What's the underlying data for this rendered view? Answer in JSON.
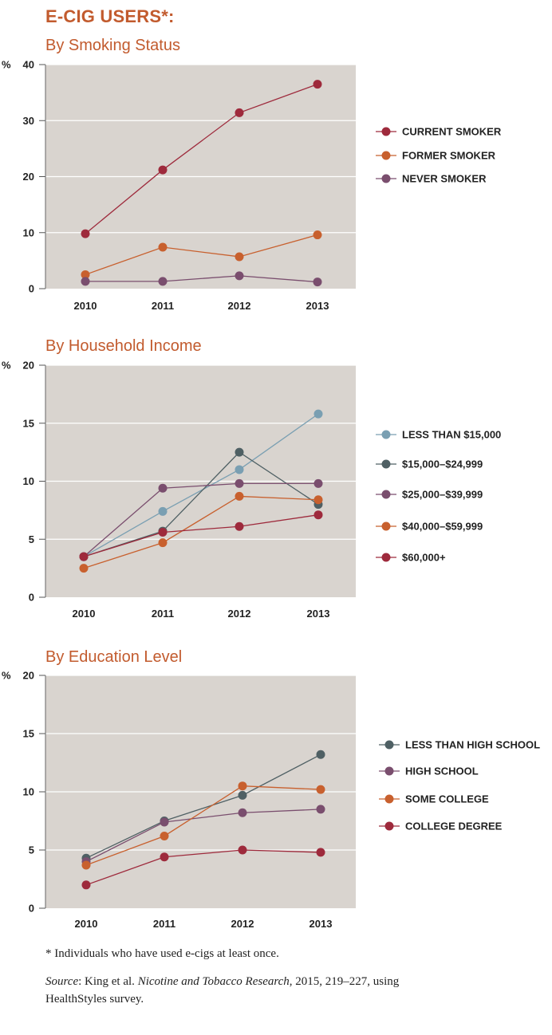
{
  "page": {
    "title": "E-CIG USERS*:",
    "footnote": "* Individuals who have used e-cigs at least once.",
    "source_label": "Source",
    "source_sep": ": King et al. ",
    "source_journal": "Nicotine and Tobacco Research",
    "source_rest": ", 2015, 219–227, using HealthStyles survey."
  },
  "chart_data": [
    {
      "type": "line",
      "title": "By Smoking Status",
      "ylabel": "%",
      "x": [
        "2010",
        "2011",
        "2012",
        "2013"
      ],
      "ylim": [
        0,
        40
      ],
      "yticks": [
        0,
        10,
        20,
        30,
        40
      ],
      "grid": true,
      "legend_position": "right",
      "series": [
        {
          "name": "CURRENT SMOKER",
          "color": "#9e2a3c",
          "values": [
            9.8,
            21.2,
            31.4,
            36.5
          ]
        },
        {
          "name": "FORMER SMOKER",
          "color": "#c8602e",
          "values": [
            2.5,
            7.4,
            5.7,
            9.6
          ]
        },
        {
          "name": "NEVER SMOKER",
          "color": "#7a4e6e",
          "values": [
            1.3,
            1.3,
            2.3,
            1.2
          ]
        }
      ]
    },
    {
      "type": "line",
      "title": "By Household Income",
      "ylabel": "%",
      "x": [
        "2010",
        "2011",
        "2012",
        "2013"
      ],
      "ylim": [
        0,
        20
      ],
      "yticks": [
        0,
        5,
        10,
        15,
        20
      ],
      "grid": true,
      "legend_position": "right",
      "series": [
        {
          "name": "LESS THAN $15,000",
          "color": "#7a9fb2",
          "values": [
            3.5,
            7.4,
            11.0,
            15.8
          ]
        },
        {
          "name": "$15,000–$24,999",
          "color": "#4f6064",
          "values": [
            3.5,
            5.7,
            12.5,
            8.0
          ]
        },
        {
          "name": "$25,000–$39,999",
          "color": "#7a4e6e",
          "values": [
            3.5,
            9.4,
            9.8,
            9.8
          ]
        },
        {
          "name": "$40,000–$59,999",
          "color": "#c8602e",
          "values": [
            2.5,
            4.7,
            8.7,
            8.4
          ]
        },
        {
          "name": "$60,000+",
          "color": "#9e2a3c",
          "values": [
            3.5,
            5.6,
            6.1,
            7.1
          ]
        }
      ]
    },
    {
      "type": "line",
      "title": "By Education Level",
      "ylabel": "%",
      "x": [
        "2010",
        "2011",
        "2012",
        "2013"
      ],
      "ylim": [
        0,
        20
      ],
      "yticks": [
        0,
        5,
        10,
        15,
        20
      ],
      "grid": true,
      "legend_position": "right",
      "series": [
        {
          "name": "LESS THAN HIGH SCHOOL",
          "color": "#4f6064",
          "values": [
            4.3,
            7.5,
            9.7,
            13.2
          ]
        },
        {
          "name": "HIGH SCHOOL",
          "color": "#7a4e6e",
          "values": [
            4.0,
            7.4,
            8.2,
            8.5
          ]
        },
        {
          "name": "SOME COLLEGE",
          "color": "#c8602e",
          "values": [
            3.7,
            6.2,
            10.5,
            10.2
          ]
        },
        {
          "name": "COLLEGE DEGREE",
          "color": "#9e2a3c",
          "values": [
            2.0,
            4.4,
            5.0,
            4.8
          ]
        }
      ]
    }
  ]
}
